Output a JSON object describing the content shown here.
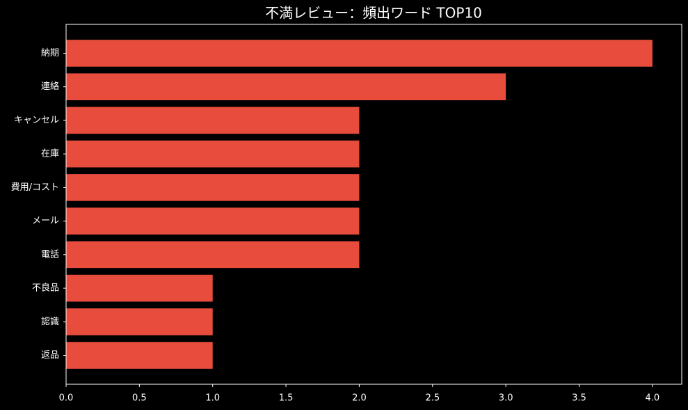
{
  "chart_data": {
    "type": "barh",
    "title": "不満レビュー：頻出ワード TOP10",
    "categories": [
      "納期",
      "連絡",
      "キャンセル",
      "在庫",
      "費用/コスト",
      "メール",
      "電話",
      "不良品",
      "認識",
      "返品"
    ],
    "values": [
      4,
      3,
      2,
      2,
      2,
      2,
      2,
      1,
      1,
      1
    ],
    "color": "#e74c3c",
    "xlim": [
      0,
      4.2
    ],
    "xticks": [
      {
        "value": 0,
        "label": "0.0"
      },
      0.5,
      {
        "value": 1,
        "label": "1.0"
      },
      1.5,
      {
        "value": 2,
        "label": "2.0"
      },
      2.5,
      {
        "value": 3,
        "label": "3.0"
      },
      3.5,
      {
        "value": 4,
        "label": "4.0"
      }
    ],
    "grid": false
  }
}
